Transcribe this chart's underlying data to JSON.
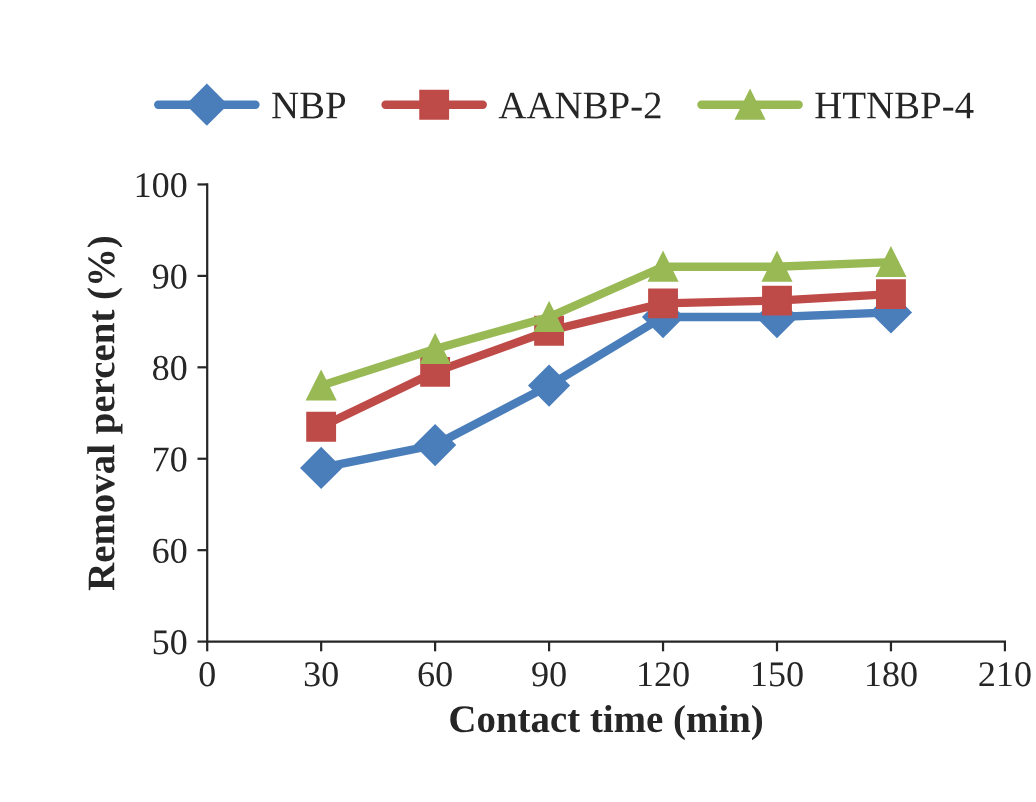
{
  "chart_data": {
    "type": "line",
    "xlabel": "Contact time (min)",
    "ylabel": "Removal percent (%)",
    "x": [
      30,
      60,
      90,
      120,
      150,
      180
    ],
    "series": [
      {
        "name": "NBP",
        "color": "#4a7ebb",
        "marker": "diamond",
        "values": [
          69,
          71.5,
          78,
          85.5,
          85.5,
          86
        ]
      },
      {
        "name": "AANBP-2",
        "color": "#be4b48",
        "marker": "square",
        "values": [
          73.5,
          79.5,
          84,
          87,
          87.3,
          88
        ]
      },
      {
        "name": "HTNBP-4",
        "color": "#98b954",
        "marker": "triangle",
        "values": [
          78,
          82,
          85.5,
          91,
          91,
          91.5
        ]
      }
    ],
    "xlim": [
      0,
      210
    ],
    "xticks": [
      0,
      30,
      60,
      90,
      120,
      150,
      180,
      210
    ],
    "ylim": [
      50,
      100
    ],
    "yticks": [
      50,
      60,
      70,
      80,
      90,
      100
    ],
    "grid": false,
    "legend": "top",
    "line_style": "solid"
  }
}
